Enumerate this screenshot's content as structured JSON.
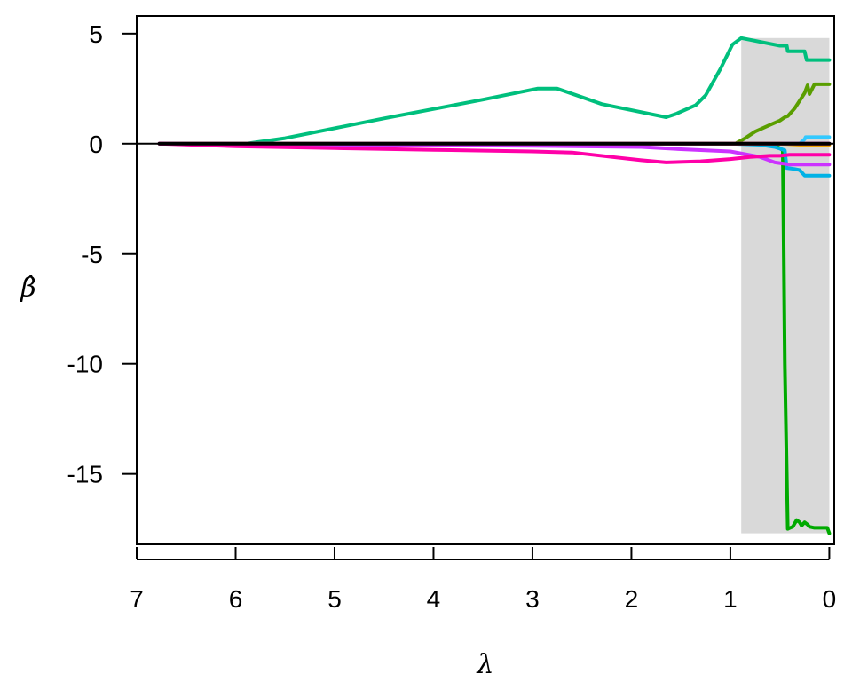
{
  "chart_data": {
    "type": "line",
    "title": "",
    "xlabel": "λ",
    "ylabel": "β̂",
    "xlim": [
      7.0,
      -0.05
    ],
    "ylim": [
      -18.2,
      5.8
    ],
    "x_reversed": true,
    "x_ticks": [
      7,
      6,
      5,
      4,
      3,
      2,
      1,
      0
    ],
    "x_tick_labels": [
      "7",
      "6",
      "5",
      "4",
      "3",
      "2",
      "1",
      "0"
    ],
    "y_ticks": [
      5,
      0,
      -5,
      -10,
      -15
    ],
    "y_tick_labels": [
      "5",
      "0",
      "-5",
      "-10",
      "-15"
    ],
    "grid": false,
    "legend": "none",
    "reference_line": {
      "y": 0,
      "color": "#000000"
    },
    "highlight_region": {
      "x_from": 0.89,
      "x_to": 0.0,
      "y_from": -17.7,
      "y_to": 4.8,
      "color": "#d9d9d9"
    },
    "series": [
      {
        "color": "#00bf7d",
        "points": [
          [
            6.77,
            0
          ],
          [
            5.9,
            0
          ],
          [
            5.5,
            0.25
          ],
          [
            4.5,
            1.15
          ],
          [
            3.5,
            2.0
          ],
          [
            2.95,
            2.5
          ],
          [
            2.75,
            2.5
          ],
          [
            2.3,
            1.8
          ],
          [
            1.65,
            1.2
          ],
          [
            1.55,
            1.35
          ],
          [
            1.35,
            1.75
          ],
          [
            1.25,
            2.2
          ],
          [
            1.1,
            3.4
          ],
          [
            0.98,
            4.5
          ],
          [
            0.89,
            4.8
          ],
          [
            0.5,
            4.45
          ],
          [
            0.43,
            4.45
          ],
          [
            0.42,
            4.2
          ],
          [
            0.25,
            4.2
          ],
          [
            0.23,
            3.8
          ],
          [
            0.0,
            3.8
          ]
        ]
      },
      {
        "color": "#5a9e00",
        "points": [
          [
            6.77,
            0
          ],
          [
            0.95,
            0
          ],
          [
            0.89,
            0.15
          ],
          [
            0.85,
            0.25
          ],
          [
            0.75,
            0.55
          ],
          [
            0.6,
            0.85
          ],
          [
            0.5,
            1.05
          ],
          [
            0.45,
            1.2
          ],
          [
            0.42,
            1.25
          ],
          [
            0.35,
            1.6
          ],
          [
            0.25,
            2.3
          ],
          [
            0.22,
            2.65
          ],
          [
            0.2,
            2.25
          ],
          [
            0.15,
            2.7
          ],
          [
            0.0,
            2.7
          ]
        ]
      },
      {
        "color": "#00aa00",
        "points": [
          [
            6.77,
            0
          ],
          [
            0.6,
            0
          ],
          [
            0.5,
            -0.2
          ],
          [
            0.47,
            -0.3
          ],
          [
            0.45,
            -10.0
          ],
          [
            0.42,
            -17.5
          ],
          [
            0.37,
            -17.4
          ],
          [
            0.33,
            -17.1
          ],
          [
            0.3,
            -17.2
          ],
          [
            0.28,
            -17.35
          ],
          [
            0.25,
            -17.2
          ],
          [
            0.22,
            -17.3
          ],
          [
            0.2,
            -17.4
          ],
          [
            0.15,
            -17.45
          ],
          [
            0.02,
            -17.45
          ],
          [
            0.0,
            -17.7
          ]
        ]
      },
      {
        "color": "#00b2e6",
        "points": [
          [
            6.77,
            0
          ],
          [
            1.0,
            0
          ],
          [
            0.7,
            -0.05
          ],
          [
            0.55,
            -0.15
          ],
          [
            0.45,
            -0.3
          ],
          [
            0.43,
            -1.1
          ],
          [
            0.35,
            -1.15
          ],
          [
            0.3,
            -1.2
          ],
          [
            0.25,
            -1.45
          ],
          [
            0.0,
            -1.45
          ]
        ]
      },
      {
        "color": "#33c9ff",
        "points": [
          [
            6.77,
            0
          ],
          [
            0.3,
            0
          ],
          [
            0.25,
            0.2
          ],
          [
            0.24,
            0.3
          ],
          [
            0.0,
            0.3
          ]
        ]
      },
      {
        "color": "#8c5fe0",
        "points": [
          [
            6.77,
            0
          ],
          [
            0.0,
            0
          ]
        ]
      },
      {
        "color": "#f0a400",
        "points": [
          [
            6.77,
            0
          ],
          [
            0.5,
            0
          ],
          [
            0.3,
            -0.05
          ],
          [
            0.0,
            -0.05
          ]
        ]
      },
      {
        "color": "#cc33ff",
        "points": [
          [
            6.77,
            0
          ],
          [
            3.0,
            -0.1
          ],
          [
            1.9,
            -0.15
          ],
          [
            1.5,
            -0.25
          ],
          [
            1.0,
            -0.35
          ],
          [
            0.7,
            -0.6
          ],
          [
            0.55,
            -0.85
          ],
          [
            0.4,
            -0.95
          ],
          [
            0.2,
            -0.95
          ],
          [
            0.0,
            -0.95
          ]
        ]
      },
      {
        "color": "#ff33aa",
        "points": [
          [
            6.77,
            0
          ],
          [
            0.0,
            0
          ]
        ]
      },
      {
        "color": "#ff00a8",
        "points": [
          [
            6.77,
            0
          ],
          [
            6.0,
            -0.12
          ],
          [
            5.0,
            -0.2
          ],
          [
            4.0,
            -0.28
          ],
          [
            3.0,
            -0.35
          ],
          [
            2.6,
            -0.4
          ],
          [
            2.2,
            -0.6
          ],
          [
            1.9,
            -0.75
          ],
          [
            1.65,
            -0.85
          ],
          [
            1.3,
            -0.8
          ],
          [
            1.0,
            -0.7
          ],
          [
            0.8,
            -0.6
          ],
          [
            0.6,
            -0.55
          ],
          [
            0.5,
            -0.55
          ],
          [
            0.4,
            -0.5
          ],
          [
            0.0,
            -0.5
          ]
        ]
      },
      {
        "color": "#000000",
        "points": [
          [
            6.77,
            0
          ],
          [
            0.0,
            0
          ]
        ]
      }
    ]
  }
}
